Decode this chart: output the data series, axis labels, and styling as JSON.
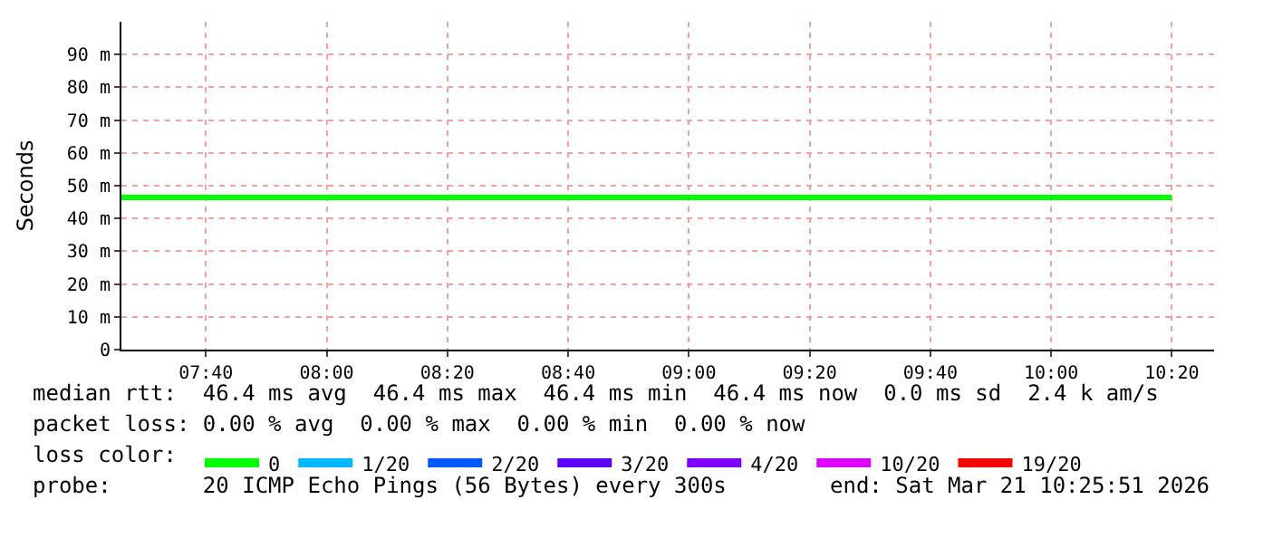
{
  "chart_data": {
    "type": "line",
    "ylabel": "Seconds",
    "x": [
      "2026-03-21T07:26",
      "2026-03-21T07:40",
      "2026-03-21T08:00",
      "2026-03-21T08:20",
      "2026-03-21T08:40",
      "2026-03-21T09:00",
      "2026-03-21T09:20",
      "2026-03-21T09:40",
      "2026-03-21T10:00",
      "2026-03-21T10:20"
    ],
    "series": [
      {
        "name": "0",
        "color": "#00ff00",
        "values": [
          46.4,
          46.4,
          46.4,
          46.4,
          46.4,
          46.4,
          46.4,
          46.4,
          46.4,
          46.4
        ]
      },
      {
        "name": "1/20",
        "color": "#00b8ff",
        "values": [
          null,
          null,
          null,
          null,
          null,
          null,
          null,
          null,
          null,
          null
        ]
      },
      {
        "name": "2/20",
        "color": "#0059ff",
        "values": [
          null,
          null,
          null,
          null,
          null,
          null,
          null,
          null,
          null,
          null
        ]
      },
      {
        "name": "3/20",
        "color": "#5e00ff",
        "values": [
          null,
          null,
          null,
          null,
          null,
          null,
          null,
          null,
          null,
          null
        ]
      },
      {
        "name": "4/20",
        "color": "#7e00ff",
        "values": [
          null,
          null,
          null,
          null,
          null,
          null,
          null,
          null,
          null,
          null
        ]
      },
      {
        "name": "10/20",
        "color": "#dd00ff",
        "values": [
          null,
          null,
          null,
          null,
          null,
          null,
          null,
          null,
          null,
          null
        ]
      },
      {
        "name": "19/20",
        "color": "#ff0000",
        "values": [
          null,
          null,
          null,
          null,
          null,
          null,
          null,
          null,
          null,
          null
        ]
      }
    ],
    "xlim": [
      "2026-03-21T07:26",
      "2026-03-21T10:27"
    ],
    "xticks": [
      {
        "value": "2026-03-21T07:40",
        "label": "07:40"
      },
      {
        "value": "2026-03-21T08:00",
        "label": "08:00"
      },
      {
        "value": "2026-03-21T08:20",
        "label": "08:20"
      },
      {
        "value": "2026-03-21T08:40",
        "label": "08:40"
      },
      {
        "value": "2026-03-21T09:00",
        "label": "09:00"
      },
      {
        "value": "2026-03-21T09:20",
        "label": "09:20"
      },
      {
        "value": "2026-03-21T09:40",
        "label": "09:40"
      },
      {
        "value": "2026-03-21T10:00",
        "label": "10:00"
      },
      {
        "value": "2026-03-21T10:20",
        "label": "10:20"
      }
    ],
    "ylim": [
      0,
      100
    ],
    "yticks": [
      0,
      {
        "value": 10,
        "label": "10 m"
      },
      {
        "value": 20,
        "label": "20 m"
      },
      {
        "value": 30,
        "label": "30 m"
      },
      {
        "value": 40,
        "label": "40 m"
      },
      {
        "value": 50,
        "label": "50 m"
      },
      {
        "value": 60,
        "label": "60 m"
      },
      {
        "value": 70,
        "label": "70 m"
      },
      {
        "value": 80,
        "label": "80 m"
      },
      {
        "value": 90,
        "label": "90 m"
      }
    ],
    "grid": true,
    "legend": "bottom",
    "line_style": "solid",
    "marker": "none",
    "annotations": [
      "median rtt:  46.4 ms avg  46.4 ms max  46.4 ms min  46.4 ms now  0.0 ms sd  2.4 k am/s",
      "packet loss: 0.00 % avg  0.00 % max  0.00 % min  0.00 % now",
      "loss color:",
      "probe:       20 ICMP Echo Pings (56 Bytes) every 300s",
      "end: Sat Mar 21 10:25:51 2026"
    ]
  }
}
